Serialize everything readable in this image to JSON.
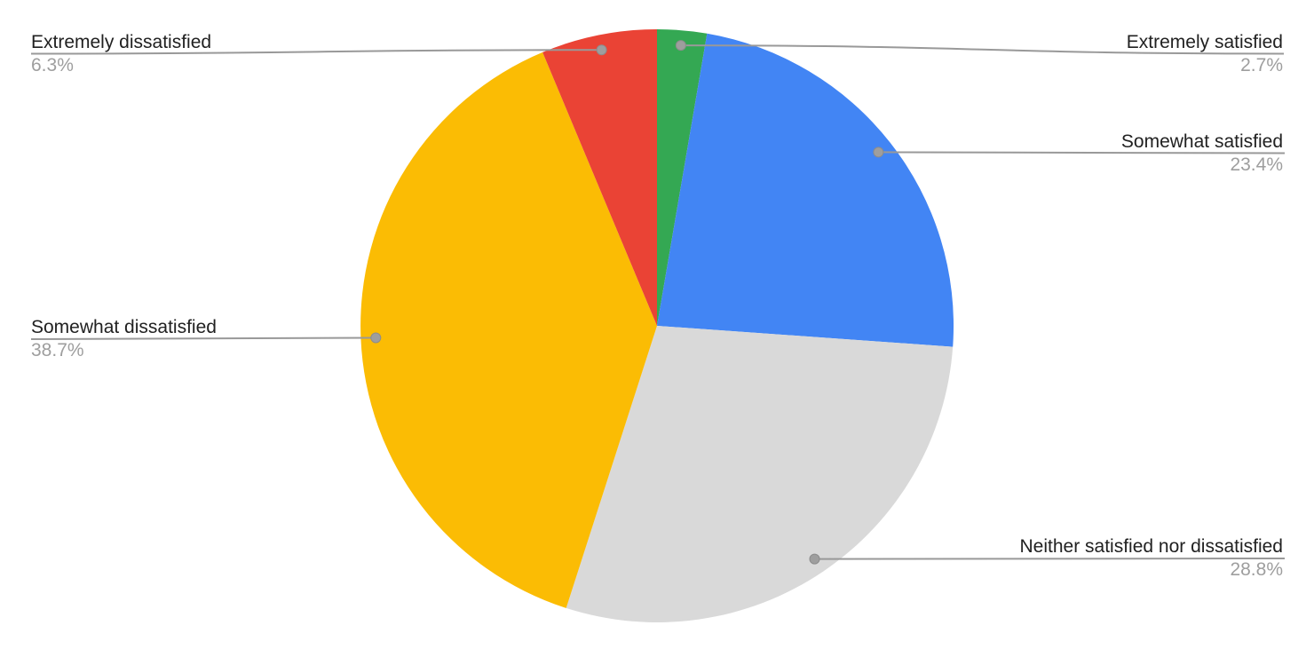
{
  "chart_data": {
    "type": "pie",
    "title": "",
    "direction": "clockwise",
    "start_angle_deg": 0,
    "legend_position": "callout-labels",
    "slices": [
      {
        "label": "Extremely satisfied",
        "value": 2.7,
        "pct_label": "2.7%",
        "color": "#34A853"
      },
      {
        "label": "Somewhat satisfied",
        "value": 23.4,
        "pct_label": "23.4%",
        "color": "#4285F4"
      },
      {
        "label": "Neither satisfied nor dissatisfied",
        "value": 28.8,
        "pct_label": "28.8%",
        "color": "#D9D9D9"
      },
      {
        "label": "Somewhat dissatisfied",
        "value": 38.7,
        "pct_label": "38.7%",
        "color": "#FBBC04"
      },
      {
        "label": "Extremely dissatisfied",
        "value": 6.3,
        "pct_label": "6.3%",
        "color": "#EA4335"
      }
    ],
    "colors": {
      "leader_line": "#999999",
      "leader_dot": "#9E9E9E",
      "label_text": "#212121",
      "pct_text": "#9E9E9E",
      "background": "#FFFFFF"
    }
  }
}
